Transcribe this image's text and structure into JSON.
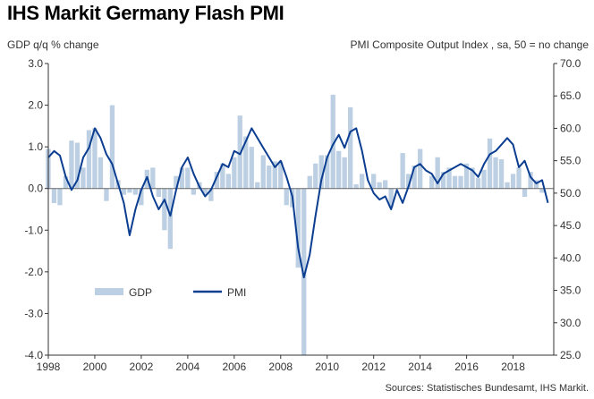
{
  "title": "IHS Markit Germany Flash PMI",
  "source": "Sources: Statistisches Bundesamt, IHS Markit.",
  "chart_data": {
    "type": "bar+line",
    "title": "IHS Markit Germany Flash PMI",
    "ylabel_left": "GDP  q/q % change",
    "ylabel_right": "PMI Composite  Output  Index  , sa, 50 = no change",
    "ylim_left": [
      -4.0,
      3.0
    ],
    "ylim_right": [
      25.0,
      70.0
    ],
    "left_ticks": [
      "3.0",
      "2.0",
      "1.0",
      "0.0",
      "-1.0",
      "-2.0",
      "-3.0",
      "-4.0"
    ],
    "right_ticks": [
      "70.0",
      "65.0",
      "60.0",
      "55.0",
      "50.0",
      "45.0",
      "40.0",
      "35.0",
      "30.0",
      "25.0"
    ],
    "x_ticks": [
      "1998",
      "2000",
      "2002",
      "2004",
      "2006",
      "2008",
      "2010",
      "2012",
      "2014",
      "2016",
      "2018"
    ],
    "xlim": [
      1998.0,
      2019.75
    ],
    "grid": false,
    "legend_position": "bottom-left",
    "colors": {
      "gdp": "#bccfe3",
      "pmi": "#0b3d91"
    },
    "gdp": {
      "name": "GDP",
      "axis": "left",
      "x": [
        1998.0,
        1998.25,
        1998.5,
        1998.75,
        1999.0,
        1999.25,
        1999.5,
        1999.75,
        2000.0,
        2000.25,
        2000.5,
        2000.75,
        2001.0,
        2001.25,
        2001.5,
        2001.75,
        2002.0,
        2002.25,
        2002.5,
        2002.75,
        2003.0,
        2003.25,
        2003.5,
        2003.75,
        2004.0,
        2004.25,
        2004.5,
        2004.75,
        2005.0,
        2005.25,
        2005.5,
        2005.75,
        2006.0,
        2006.25,
        2006.5,
        2006.75,
        2007.0,
        2007.25,
        2007.5,
        2007.75,
        2008.0,
        2008.25,
        2008.5,
        2008.75,
        2009.0,
        2009.25,
        2009.5,
        2009.75,
        2010.0,
        2010.25,
        2010.5,
        2010.75,
        2011.0,
        2011.25,
        2011.5,
        2011.75,
        2012.0,
        2012.25,
        2012.5,
        2012.75,
        2013.0,
        2013.25,
        2013.5,
        2013.75,
        2014.0,
        2014.25,
        2014.5,
        2014.75,
        2015.0,
        2015.25,
        2015.5,
        2015.75,
        2016.0,
        2016.25,
        2016.5,
        2016.75,
        2017.0,
        2017.25,
        2017.5,
        2017.75,
        2018.0,
        2018.25,
        2018.5,
        2018.75,
        2019.0,
        2019.25
      ],
      "values": [
        0.95,
        -0.35,
        -0.4,
        0.3,
        1.15,
        1.1,
        0.5,
        1.4,
        1.45,
        0.75,
        -0.3,
        2.0,
        0.2,
        -0.15,
        -0.1,
        -0.15,
        -0.4,
        0.45,
        0.5,
        -0.2,
        -1.0,
        -1.45,
        0.3,
        0.5,
        0.5,
        -0.15,
        0.15,
        -0.15,
        -0.3,
        0.4,
        0.6,
        0.35,
        0.75,
        1.75,
        1.25,
        1.0,
        0.15,
        0.8,
        0.55,
        0.65,
        0.65,
        -0.4,
        -0.45,
        -1.9,
        -4.0,
        0.3,
        0.6,
        0.8,
        0.8,
        2.25,
        0.9,
        0.75,
        1.95,
        0.1,
        0.35,
        0.0,
        0.35,
        0.15,
        0.2,
        -0.45,
        0.0,
        0.85,
        0.35,
        0.55,
        0.95,
        0.0,
        0.3,
        0.75,
        0.4,
        0.5,
        0.3,
        0.3,
        0.6,
        0.5,
        0.25,
        0.45,
        1.2,
        0.75,
        0.7,
        0.15,
        0.35,
        0.5,
        -0.2,
        0.4,
        0.2,
        -0.1
      ]
    },
    "pmi": {
      "name": "PMI",
      "axis": "right",
      "x": [
        1998.0,
        1998.25,
        1998.5,
        1998.75,
        1999.0,
        1999.25,
        1999.5,
        1999.75,
        2000.0,
        2000.25,
        2000.5,
        2000.75,
        2001.0,
        2001.25,
        2001.5,
        2001.75,
        2002.0,
        2002.25,
        2002.5,
        2002.75,
        2003.0,
        2003.25,
        2003.5,
        2003.75,
        2004.0,
        2004.25,
        2004.5,
        2004.75,
        2005.0,
        2005.25,
        2005.5,
        2005.75,
        2006.0,
        2006.25,
        2006.5,
        2006.75,
        2007.0,
        2007.25,
        2007.5,
        2007.75,
        2008.0,
        2008.25,
        2008.5,
        2008.75,
        2009.0,
        2009.25,
        2009.5,
        2009.75,
        2010.0,
        2010.25,
        2010.5,
        2010.75,
        2011.0,
        2011.25,
        2011.5,
        2011.75,
        2012.0,
        2012.25,
        2012.5,
        2012.75,
        2013.0,
        2013.25,
        2013.5,
        2013.75,
        2014.0,
        2014.25,
        2014.5,
        2014.75,
        2015.0,
        2015.25,
        2015.5,
        2015.75,
        2016.0,
        2016.25,
        2016.5,
        2016.75,
        2017.0,
        2017.25,
        2017.5,
        2017.75,
        2018.0,
        2018.25,
        2018.5,
        2018.75,
        2019.0,
        2019.25,
        2019.5
      ],
      "values": [
        55.5,
        56.5,
        55.8,
        52.5,
        50.5,
        52.0,
        55.5,
        57.0,
        60.0,
        58.5,
        56.0,
        54.5,
        51.5,
        48.5,
        43.5,
        47.5,
        50.5,
        52.5,
        49.5,
        47.5,
        49.0,
        46.5,
        50.5,
        54.0,
        55.5,
        53.0,
        51.0,
        49.5,
        50.5,
        52.5,
        54.5,
        54.0,
        56.5,
        56.0,
        58.0,
        60.0,
        58.5,
        57.0,
        55.5,
        54.0,
        55.0,
        52.5,
        49.5,
        41.5,
        37.0,
        40.5,
        46.5,
        52.0,
        55.5,
        57.5,
        59.0,
        57.0,
        59.5,
        60.0,
        56.5,
        52.0,
        50.0,
        49.0,
        49.5,
        47.5,
        50.5,
        48.5,
        51.0,
        54.0,
        54.5,
        53.5,
        53.0,
        51.5,
        53.0,
        53.5,
        54.0,
        54.5,
        54.0,
        53.5,
        52.5,
        54.5,
        56.0,
        56.5,
        57.5,
        58.5,
        57.5,
        54.0,
        55.0,
        52.5,
        51.5,
        52.0,
        48.5
      ]
    }
  }
}
